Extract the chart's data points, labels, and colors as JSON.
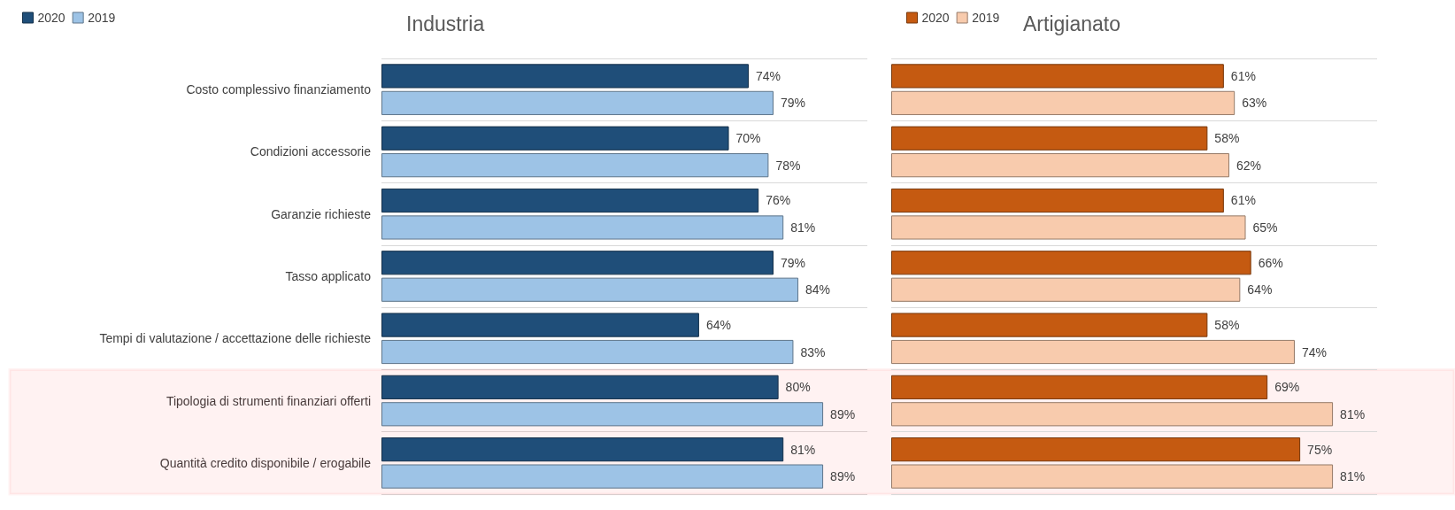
{
  "chart_data": [
    {
      "type": "bar",
      "title": "Industria",
      "orientation": "horizontal",
      "categories": [
        "Costo complessivo finanziamento",
        "Condizioni accessorie",
        "Garanzie richieste",
        "Tasso applicato",
        "Tempi di valutazione / accettazione delle richieste",
        "Tipologia di strumenti finanziari offerti",
        "Quantità credito disponibile / erogabile"
      ],
      "series": [
        {
          "name": "2020",
          "color": "#1f4e79",
          "values": [
            74,
            70,
            76,
            79,
            64,
            80,
            81
          ],
          "value_labels": [
            "74%",
            "70%",
            "76%",
            "79%",
            "64%",
            "80%",
            "81%"
          ]
        },
        {
          "name": "2019",
          "color": "#9dc3e6",
          "values": [
            79,
            78,
            81,
            84,
            83,
            89,
            89
          ],
          "value_labels": [
            "79%",
            "78%",
            "81%",
            "84%",
            "83%",
            "89%",
            "89%"
          ]
        }
      ],
      "bands": [
        {
          "axis": "y",
          "from": "Tipologia di strumenti finanziari offerti",
          "to": "Quantità credito disponibile / erogabile",
          "color": "#ff0000"
        }
      ],
      "grid": "y",
      "legend": "top left",
      "tick_labels": "y"
    },
    {
      "type": "bar",
      "title": "Artigianato",
      "orientation": "horizontal",
      "categories": [
        null,
        null,
        null,
        null,
        null,
        null,
        null
      ],
      "series": [
        {
          "name": "2020",
          "color": "#c55a11",
          "values": [
            61,
            58,
            61,
            66,
            58,
            69,
            75
          ],
          "value_labels": [
            "61%",
            "58%",
            "61%",
            "66%",
            "58%",
            "69%",
            "75%"
          ]
        },
        {
          "name": "2019",
          "color": "#f8cbad",
          "values": [
            63,
            62,
            65,
            64,
            74,
            81,
            81
          ],
          "value_labels": [
            "63%",
            "62%",
            "65%",
            "64%",
            "74%",
            "81%",
            "81%"
          ]
        }
      ],
      "grid": "y",
      "legend": "top left",
      "tick_labels": false
    }
  ]
}
